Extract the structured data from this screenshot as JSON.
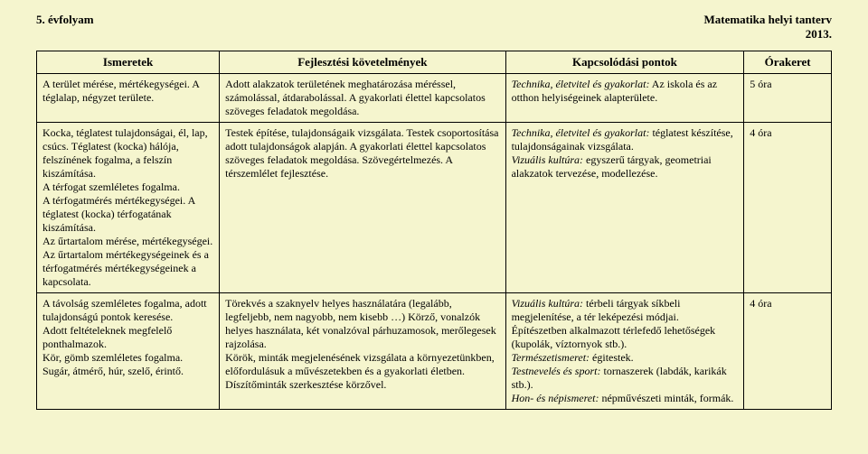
{
  "header": {
    "left": "5. évfolyam",
    "right_line1": "Matematika helyi tanterv",
    "right_line2": "2013."
  },
  "columns": {
    "c1": "Ismeretek",
    "c2": "Fejlesztési követelmények",
    "c3": "Kapcsolódási pontok",
    "c4": "Órakeret"
  },
  "rows": [
    {
      "ismeretek": "A terület mérése, mértékegységei. A téglalap, négyzet területe.",
      "fejl": "Adott alakzatok területének meghatározása méréssel, számolással, átdarabolással. A gyakorlati élettel kapcsolatos szöveges feladatok megoldása.",
      "kapcs_it": "Technika, életvitel és gyakorlat:",
      "kapcs_rest": " Az iskola és az otthon helyiségeinek alapterülete.",
      "ora": "5 óra"
    },
    {
      "ismeretek": "Kocka, téglatest tulajdonságai, él, lap, csúcs. Téglatest (kocka) hálója, felszínének fogalma, a felszín kiszámítása.\nA térfogat szemléletes fogalma.\nA térfogatmérés mértékegységei. A téglatest (kocka) térfogatának kiszámítása.\nAz űrtartalom mérése, mértékegységei. Az űrtartalom mértékegységeinek és a térfogatmérés mértékegységeinek a kapcsolata.",
      "fejl": "Testek építése, tulajdonságaik vizsgálata. Testek csoportosítása adott tulajdonságok alapján. A gyakorlati élettel kapcsolatos szöveges feladatok megoldása. Szövegértelmezés. A térszemlélet fejlesztése.",
      "kapcs_it": "Technika, életvitel és gyakorlat:",
      "kapcs_rest": " téglatest készítése, tulajdonságainak vizsgálata.",
      "kapcs2_it": "Vizuális kultúra:",
      "kapcs2_rest": " egyszerű tárgyak, geometriai alakzatok tervezése, modellezése.",
      "ora": "4 óra"
    },
    {
      "ismeretek": "A távolság szemléletes fogalma, adott tulajdonságú pontok keresése.\nAdott feltételeknek megfelelő ponthalmazok.\nKör, gömb szemléletes fogalma.\nSugár, átmérő, húr, szelő, érintő.",
      "fejl": "Törekvés a szaknyelv helyes használatára (legalább, legfeljebb, nem nagyobb, nem kisebb …) Körző, vonalzók helyes használata, két vonalzóval párhuzamosok, merőlegesek rajzolása.\nKörök, minták megjelenésének vizsgálata a környezetünkben, előfordulásuk a művészetekben és a gyakorlati életben. Díszítőminták szerkesztése körzővel.",
      "kapcs_it": "Vizuális kultúra:",
      "kapcs_rest": " térbeli tárgyak síkbeli megjelenítése, a tér leképezési módjai.\nÉpítészetben alkalmazott térlefedő lehetőségek (kupolák, víztornyok stb.).",
      "k2_it": "Természetismeret:",
      "k2_rest": " égitestek.",
      "k3_it": "Testnevelés és sport:",
      "k3_rest": " tornaszerek (labdák, karikák stb.).",
      "k4_it": "Hon- és népismeret:",
      "k4_rest": " népművészeti minták, formák.",
      "ora": "4 óra"
    }
  ]
}
